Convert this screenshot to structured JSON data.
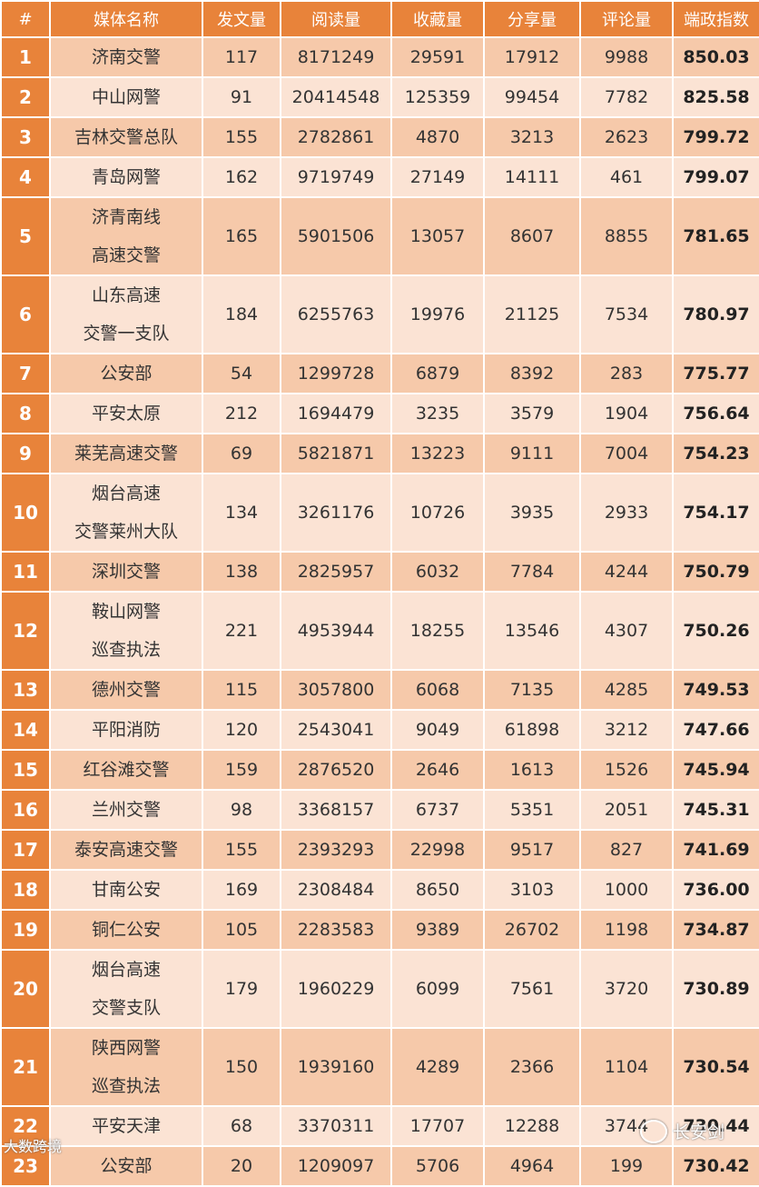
{
  "headers": [
    "#",
    "媒体名称",
    "发文量",
    "阅读量",
    "收藏量",
    "分享量",
    "评论量",
    "端政指数"
  ],
  "rows": [
    {
      "rank": "1",
      "name": [
        "济南交警"
      ],
      "posts": "117",
      "reads": "8171249",
      "favorites": "29591",
      "shares": "17912",
      "comments": "9988",
      "index": "850.03"
    },
    {
      "rank": "2",
      "name": [
        "中山网警"
      ],
      "posts": "91",
      "reads": "20414548",
      "favorites": "125359",
      "shares": "99454",
      "comments": "7782",
      "index": "825.58"
    },
    {
      "rank": "3",
      "name": [
        "吉林交警总队"
      ],
      "posts": "155",
      "reads": "2782861",
      "favorites": "4870",
      "shares": "3213",
      "comments": "2623",
      "index": "799.72"
    },
    {
      "rank": "4",
      "name": [
        "青岛网警"
      ],
      "posts": "162",
      "reads": "9719749",
      "favorites": "27149",
      "shares": "14111",
      "comments": "461",
      "index": "799.07"
    },
    {
      "rank": "5",
      "name": [
        "济青南线",
        "高速交警"
      ],
      "posts": "165",
      "reads": "5901506",
      "favorites": "13057",
      "shares": "8607",
      "comments": "8855",
      "index": "781.65"
    },
    {
      "rank": "6",
      "name": [
        "山东高速",
        "交警一支队"
      ],
      "posts": "184",
      "reads": "6255763",
      "favorites": "19976",
      "shares": "21125",
      "comments": "7534",
      "index": "780.97"
    },
    {
      "rank": "7",
      "name": [
        "公安部"
      ],
      "posts": "54",
      "reads": "1299728",
      "favorites": "6879",
      "shares": "8392",
      "comments": "283",
      "index": "775.77"
    },
    {
      "rank": "8",
      "name": [
        "平安太原"
      ],
      "posts": "212",
      "reads": "1694479",
      "favorites": "3235",
      "shares": "3579",
      "comments": "1904",
      "index": "756.64"
    },
    {
      "rank": "9",
      "name": [
        "莱芜高速交警"
      ],
      "posts": "69",
      "reads": "5821871",
      "favorites": "13223",
      "shares": "9111",
      "comments": "7004",
      "index": "754.23"
    },
    {
      "rank": "10",
      "name": [
        "烟台高速",
        "交警莱州大队"
      ],
      "posts": "134",
      "reads": "3261176",
      "favorites": "10726",
      "shares": "3935",
      "comments": "2933",
      "index": "754.17"
    },
    {
      "rank": "11",
      "name": [
        "深圳交警"
      ],
      "posts": "138",
      "reads": "2825957",
      "favorites": "6032",
      "shares": "7784",
      "comments": "4244",
      "index": "750.79"
    },
    {
      "rank": "12",
      "name": [
        "鞍山网警",
        "巡查执法"
      ],
      "posts": "221",
      "reads": "4953944",
      "favorites": "18255",
      "shares": "13546",
      "comments": "4307",
      "index": "750.26"
    },
    {
      "rank": "13",
      "name": [
        "德州交警"
      ],
      "posts": "115",
      "reads": "3057800",
      "favorites": "6068",
      "shares": "7135",
      "comments": "4285",
      "index": "749.53"
    },
    {
      "rank": "14",
      "name": [
        "平阳消防"
      ],
      "posts": "120",
      "reads": "2543041",
      "favorites": "9049",
      "shares": "61898",
      "comments": "3212",
      "index": "747.66"
    },
    {
      "rank": "15",
      "name": [
        "红谷滩交警"
      ],
      "posts": "159",
      "reads": "2876520",
      "favorites": "2646",
      "shares": "1613",
      "comments": "1526",
      "index": "745.94"
    },
    {
      "rank": "16",
      "name": [
        "兰州交警"
      ],
      "posts": "98",
      "reads": "3368157",
      "favorites": "6737",
      "shares": "5351",
      "comments": "2051",
      "index": "745.31"
    },
    {
      "rank": "17",
      "name": [
        "泰安高速交警"
      ],
      "posts": "155",
      "reads": "2393293",
      "favorites": "22998",
      "shares": "9517",
      "comments": "827",
      "index": "741.69"
    },
    {
      "rank": "18",
      "name": [
        "甘南公安"
      ],
      "posts": "169",
      "reads": "2308484",
      "favorites": "8650",
      "shares": "3103",
      "comments": "1000",
      "index": "736.00"
    },
    {
      "rank": "19",
      "name": [
        "铜仁公安"
      ],
      "posts": "105",
      "reads": "2283583",
      "favorites": "9389",
      "shares": "26702",
      "comments": "1198",
      "index": "734.87"
    },
    {
      "rank": "20",
      "name": [
        "烟台高速",
        "交警支队"
      ],
      "posts": "179",
      "reads": "1960229",
      "favorites": "6099",
      "shares": "7561",
      "comments": "3720",
      "index": "730.89"
    },
    {
      "rank": "21",
      "name": [
        "陕西网警",
        "巡查执法"
      ],
      "posts": "150",
      "reads": "1939160",
      "favorites": "4289",
      "shares": "2366",
      "comments": "1104",
      "index": "730.54"
    },
    {
      "rank": "22",
      "name": [
        "平安天津"
      ],
      "posts": "68",
      "reads": "3370311",
      "favorites": "17707",
      "shares": "12288",
      "comments": "3744",
      "index": "730.44"
    },
    {
      "rank": "23",
      "name": [
        "公安部"
      ],
      "posts": "20",
      "reads": "1209097",
      "favorites": "5706",
      "shares": "4964",
      "comments": "199",
      "index": "730.42"
    }
  ],
  "watermarks": {
    "left": "大数跨境",
    "right": "长安剑"
  },
  "colors": {
    "header": "#e8833a",
    "row_odd": "#f6c9aa",
    "row_even": "#fbe3d4"
  }
}
